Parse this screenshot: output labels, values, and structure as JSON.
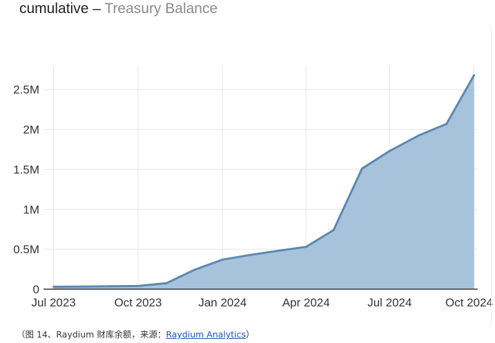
{
  "header": {
    "title_main": "cumulative",
    "title_sep": " – ",
    "title_sub": "Treasury Balance"
  },
  "caption": {
    "prefix": "（图 14、Raydium 财库余额，来源：",
    "link": "Raydium Analytics",
    "suffix": "）"
  },
  "colors": {
    "line": "#5b87b1",
    "fill": "#a7c3dc",
    "grid": "#e5e5e5",
    "axis": "#333333"
  },
  "chart_data": {
    "type": "area",
    "title": "cumulative – Treasury Balance",
    "xlabel": "",
    "ylabel": "",
    "grid": true,
    "x_ticks": [
      "Jul 2023",
      "Oct 2023",
      "Jan 2024",
      "Apr 2024",
      "Jul 2024",
      "Oct 2024"
    ],
    "y_ticks": [
      "0",
      "0.5M",
      "1M",
      "1.5M",
      "2M",
      "2.5M"
    ],
    "x_range": [
      "2023-06-20",
      "2024-10-05"
    ],
    "y_range": [
      0,
      2800000
    ],
    "x": [
      "2023-07-01",
      "2023-08-01",
      "2023-09-01",
      "2023-10-01",
      "2023-11-01",
      "2023-12-01",
      "2024-01-01",
      "2024-02-01",
      "2024-03-01",
      "2024-04-01",
      "2024-05-01",
      "2024-06-01",
      "2024-07-01",
      "2024-08-01",
      "2024-09-01",
      "2024-10-01"
    ],
    "series": [
      {
        "values": [
          30000,
          33000,
          37000,
          40000,
          75000,
          240000,
          370000,
          430000,
          480000,
          530000,
          740000,
          1510000,
          1730000,
          1920000,
          2070000,
          2680000
        ]
      }
    ]
  }
}
